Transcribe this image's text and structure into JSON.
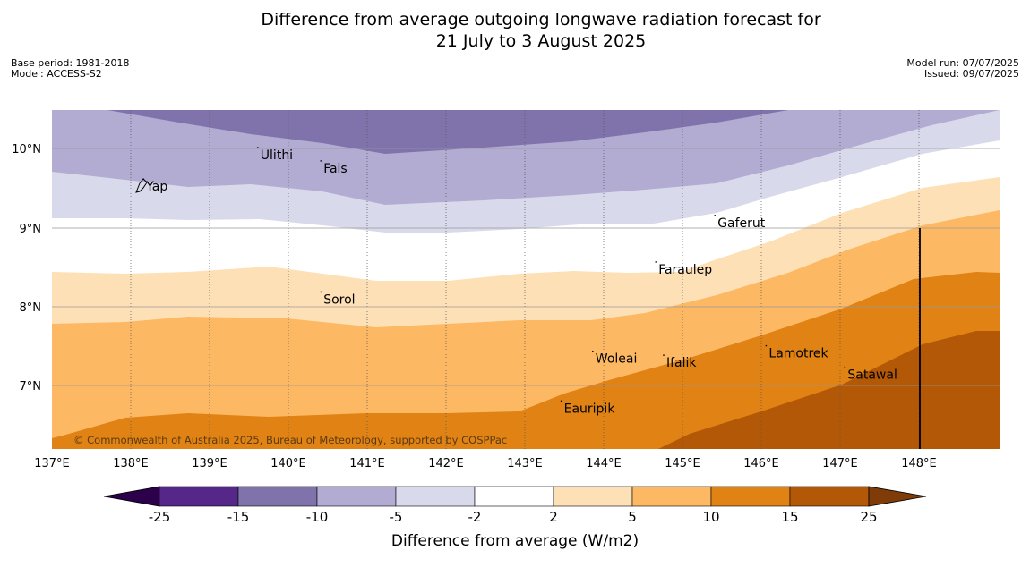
{
  "title_line1": "Difference from average outgoing longwave radiation forecast for",
  "title_line2": "21 July to 3 August 2025",
  "base_period": "Base period: 1981-2018",
  "model": "Model: ACCESS-S2",
  "model_run": "Model run: 07/07/2025",
  "issued": "Issued: 09/07/2025",
  "copyright": "© Commonwealth of Australia 2025, Bureau of Meteorology, supported by COSPPac",
  "lon_ticks": [
    "137°E",
    "138°E",
    "139°E",
    "140°E",
    "141°E",
    "142°E",
    "143°E",
    "144°E",
    "145°E",
    "146°E",
    "147°E",
    "148°E"
  ],
  "lat_ticks": [
    "10°N",
    "9°N",
    "8°N",
    "7°N"
  ],
  "places": [
    {
      "name": "Yap",
      "lon": 138.15,
      "lat": 9.53
    },
    {
      "name": "Ulithi",
      "lon": 139.6,
      "lat": 9.93
    },
    {
      "name": "Fais",
      "lon": 140.4,
      "lat": 9.76
    },
    {
      "name": "Gaferut",
      "lon": 145.4,
      "lat": 9.07
    },
    {
      "name": "Faraulep",
      "lon": 144.65,
      "lat": 8.48
    },
    {
      "name": "Sorol",
      "lon": 140.4,
      "lat": 8.1
    },
    {
      "name": "Woleai",
      "lon": 143.85,
      "lat": 7.35
    },
    {
      "name": "Ifalik",
      "lon": 144.75,
      "lat": 7.3
    },
    {
      "name": "Lamotrek",
      "lon": 146.05,
      "lat": 7.42
    },
    {
      "name": "Satawal",
      "lon": 147.05,
      "lat": 7.15
    },
    {
      "name": "Eauripik",
      "lon": 143.45,
      "lat": 6.72
    }
  ],
  "colorbar": {
    "label": "Difference from average (W/m2)",
    "ticks": [
      "-25",
      "-15",
      "-10",
      "-5",
      "-2",
      "2",
      "5",
      "10",
      "15",
      "25"
    ],
    "colors": [
      "#2d004b",
      "#542788",
      "#8073ac",
      "#b2abd2",
      "#d8daeb",
      "#ffffff",
      "#fee0b6",
      "#fdb863",
      "#e08214",
      "#b35806",
      "#7f3b08"
    ]
  }
}
